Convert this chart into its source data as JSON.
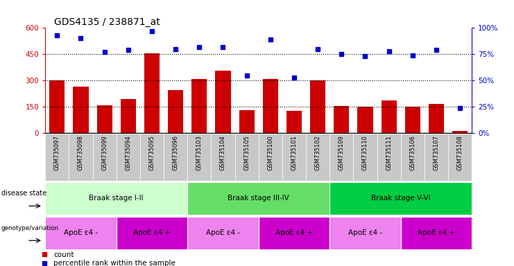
{
  "title": "GDS4135 / 238871_at",
  "samples": [
    "GSM735097",
    "GSM735098",
    "GSM735099",
    "GSM735094",
    "GSM735095",
    "GSM735096",
    "GSM735103",
    "GSM735104",
    "GSM735105",
    "GSM735100",
    "GSM735101",
    "GSM735102",
    "GSM735109",
    "GSM735110",
    "GSM735111",
    "GSM735106",
    "GSM735107",
    "GSM735108"
  ],
  "counts": [
    300,
    265,
    160,
    195,
    455,
    245,
    310,
    355,
    130,
    310,
    125,
    300,
    155,
    150,
    185,
    150,
    165,
    10
  ],
  "percentiles": [
    93,
    90,
    77,
    79,
    97,
    80,
    82,
    82,
    55,
    89,
    53,
    80,
    75,
    73,
    78,
    74,
    79,
    24
  ],
  "ylim_left": [
    0,
    600
  ],
  "ylim_right": [
    0,
    100
  ],
  "yticks_left": [
    0,
    150,
    300,
    450,
    600
  ],
  "yticks_right": [
    0,
    25,
    50,
    75,
    100
  ],
  "bar_color": "#cc0000",
  "dot_color": "#0000cc",
  "bg_color": "#ffffff",
  "xtick_bg": "#c8c8c8",
  "disease_state_row": {
    "label": "disease state",
    "groups": [
      {
        "name": "Braak stage I-II",
        "start": 0,
        "end": 5,
        "color": "#ccffcc"
      },
      {
        "name": "Braak stage III-IV",
        "start": 6,
        "end": 11,
        "color": "#66dd66"
      },
      {
        "name": "Braak stage V-VI",
        "start": 12,
        "end": 17,
        "color": "#00cc44"
      }
    ]
  },
  "genotype_row": {
    "label": "genotype/variation",
    "groups": [
      {
        "name": "ApoE ε4 -",
        "start": 0,
        "end": 2,
        "color": "#ee82ee"
      },
      {
        "name": "ApoE ε4 +",
        "start": 3,
        "end": 5,
        "color": "#cc00cc"
      },
      {
        "name": "ApoE ε4 -",
        "start": 6,
        "end": 8,
        "color": "#ee82ee"
      },
      {
        "name": "ApoE ε4 +",
        "start": 9,
        "end": 11,
        "color": "#cc00cc"
      },
      {
        "name": "ApoE ε4 -",
        "start": 12,
        "end": 14,
        "color": "#ee82ee"
      },
      {
        "name": "ApoE ε4 +",
        "start": 15,
        "end": 17,
        "color": "#cc00cc"
      }
    ]
  }
}
